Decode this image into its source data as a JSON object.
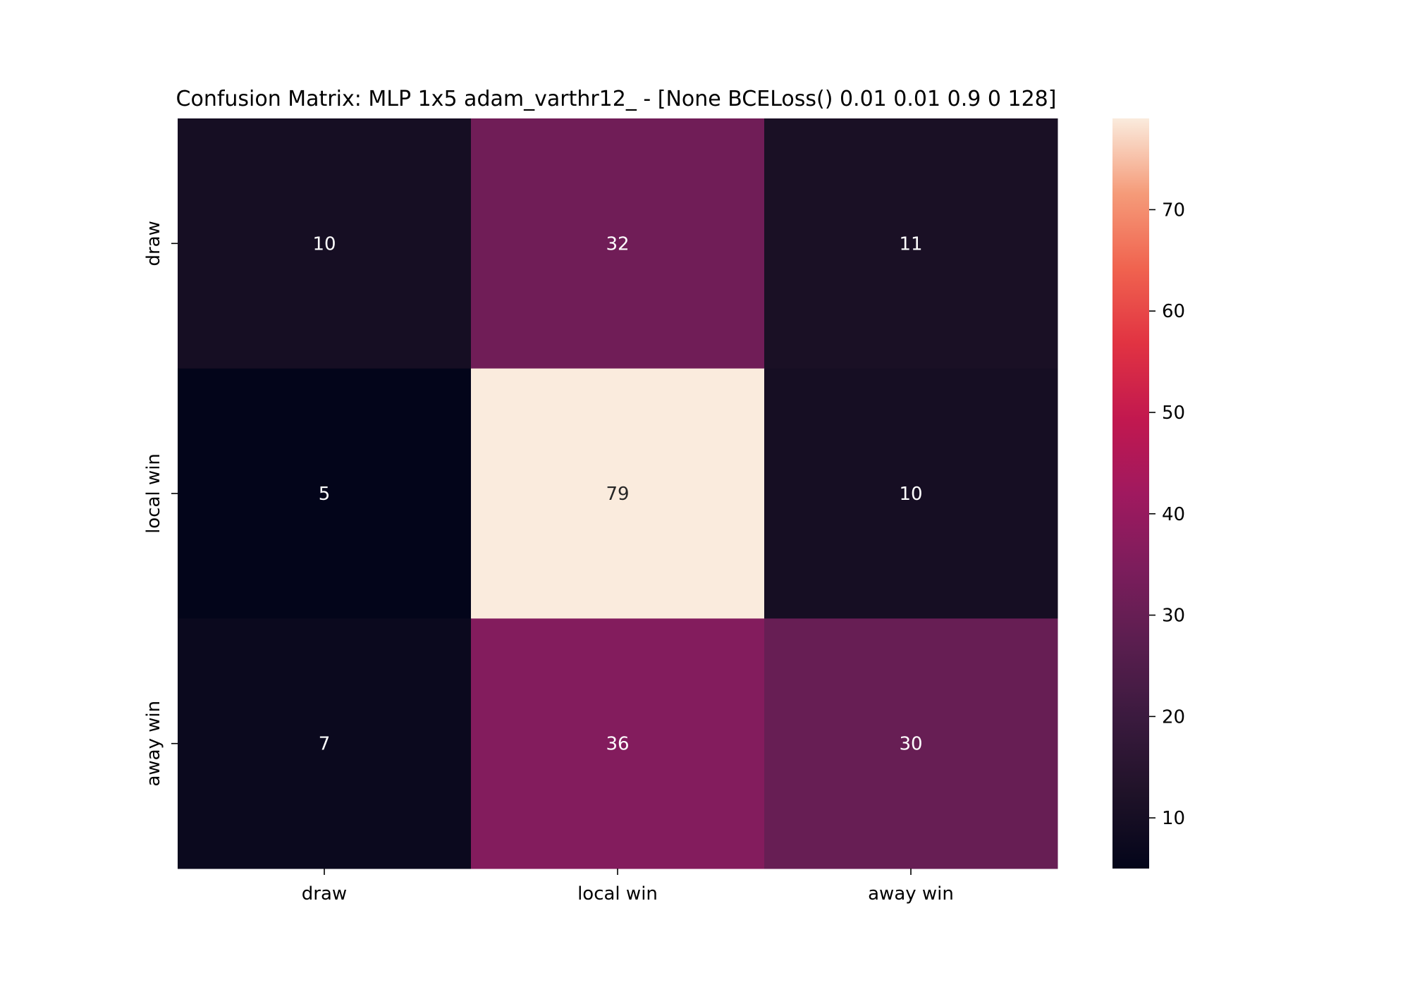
{
  "chart_data": {
    "type": "heatmap",
    "title": "Confusion Matrix: MLP 1x5 adam_varthr12_ - [None BCELoss() 0.01 0.01 0.9 0 128]",
    "x_categories": [
      "draw",
      "local win",
      "away win"
    ],
    "y_categories": [
      "draw",
      "local win",
      "away win"
    ],
    "values": [
      [
        10,
        32,
        11
      ],
      [
        5,
        79,
        10
      ],
      [
        7,
        36,
        30
      ]
    ],
    "colorbar": {
      "min": 5,
      "max": 79,
      "ticks": [
        10,
        20,
        30,
        40,
        50,
        60,
        70
      ]
    },
    "colormap": "rocket",
    "grid": false,
    "legend": "colorbar-right"
  }
}
